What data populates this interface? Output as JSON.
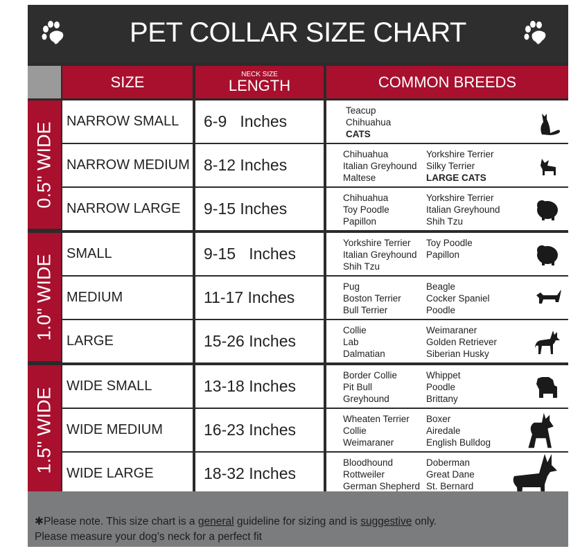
{
  "title": "PET COLLAR SIZE CHART",
  "icons": {
    "left": "paw-icon",
    "right": "paw-icon"
  },
  "colors": {
    "header_dark": "#2e2e2e",
    "accent_red": "#a8102e",
    "footer_gray": "#7a7c7d"
  },
  "headers": {
    "size": "SIZE",
    "length_small": "NECK SIZE",
    "length": "LENGTH",
    "breeds": "COMMON BREEDS"
  },
  "groups": [
    {
      "label": "0.5\" WIDE",
      "rows": [
        {
          "size": "NARROW SMALL",
          "length": "6-9   Inches",
          "col1": [
            "Teacup",
            "Chihuahua",
            "CATS"
          ],
          "col2": [],
          "bold1": "CATS",
          "icon": "cat-icon"
        },
        {
          "size": "NARROW MEDIUM",
          "length": "8-12 Inches",
          "col1": [
            "Chihuahua",
            "Italian Greyhound",
            "Maltese"
          ],
          "col2": [
            "Yorkshire Terrier",
            "Silky Terrier",
            "LARGE CATS"
          ],
          "bold2": "LARGE CATS",
          "icon": "chihuahua-icon"
        },
        {
          "size": "NARROW LARGE",
          "length": "9-15 Inches",
          "col1": [
            "Chihuahua",
            "Toy Poodle",
            "Papillon"
          ],
          "col2": [
            "Yorkshire Terrier",
            "Italian Greyhound",
            "Shih Tzu"
          ],
          "icon": "pomeranian-icon"
        }
      ]
    },
    {
      "label": "1.0\" WIDE",
      "rows": [
        {
          "size": "SMALL",
          "length": "9-15   Inches",
          "col1": [
            "Yorkshire Terrier",
            "Italian Greyhound",
            "Shih Tzu"
          ],
          "col2": [
            "Toy Poodle",
            "Papillon"
          ],
          "icon": "pomeranian-icon"
        },
        {
          "size": "MEDIUM",
          "length": "11-17 Inches",
          "col1": [
            "Pug",
            "Boston Terrier",
            "Bull Terrier"
          ],
          "col2": [
            "Beagle",
            "Cocker Spaniel",
            "Poodle"
          ],
          "icon": "dachshund-icon"
        },
        {
          "size": "LARGE",
          "length": "15-26 Inches",
          "col1": [
            "Collie",
            "Lab",
            "Dalmatian"
          ],
          "col2": [
            "Weimaraner",
            "Golden Retriever",
            "Siberian Husky"
          ],
          "icon": "shepherd-dog-icon"
        }
      ]
    },
    {
      "label": "1.5\" WIDE",
      "rows": [
        {
          "size": "WIDE SMALL",
          "length": "13-18 Inches",
          "col1": [
            "Border Collie",
            "Pit Bull",
            "Greyhound"
          ],
          "col2": [
            "Whippet",
            "Poodle",
            "Brittany"
          ],
          "icon": "bulldog-icon"
        },
        {
          "size": "WIDE MEDIUM",
          "length": "16-23 Inches",
          "col1": [
            "Wheaten Terrier",
            "Collie",
            "Weimaraner"
          ],
          "col2": [
            "Boxer",
            "Airedale",
            "English Bulldog"
          ],
          "icon": "pitbull-icon"
        },
        {
          "size": "WIDE LARGE",
          "length": "18-32 Inches",
          "col1": [
            "Bloodhound",
            "Rottweiler",
            "German Shepherd"
          ],
          "col2": [
            "Doberman",
            "Great Dane",
            "St. Bernard"
          ],
          "icon": "doberman-icon"
        }
      ]
    }
  ],
  "footer": {
    "line1_a": "✱Please note. This size chart is a ",
    "line1_u1": "general",
    "line1_b": " guideline for sizing and is ",
    "line1_u2": "suggestive",
    "line1_c": " only.",
    "line2": "Please measure your dog’s neck for a perfect fit"
  }
}
